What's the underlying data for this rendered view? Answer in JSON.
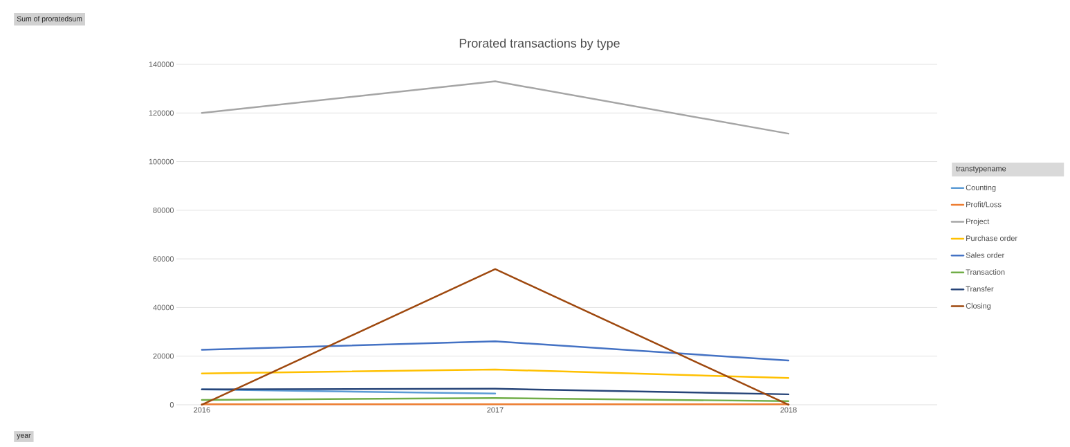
{
  "chart_data": {
    "type": "line",
    "title": "Prorated transactions by type",
    "categories": [
      "2016",
      "2017",
      "2018"
    ],
    "series": [
      {
        "name": "Counting",
        "color": "#5b9bd5",
        "values": [
          6300,
          4600,
          null
        ]
      },
      {
        "name": "Profit/Loss",
        "color": "#ed7d31",
        "values": [
          200,
          200,
          200
        ]
      },
      {
        "name": "Project",
        "color": "#a5a5a5",
        "values": [
          120000,
          133000,
          111500
        ]
      },
      {
        "name": "Purchase order",
        "color": "#ffc000",
        "values": [
          12900,
          14500,
          11000
        ]
      },
      {
        "name": "Sales order",
        "color": "#4472c4",
        "values": [
          22600,
          26100,
          18200
        ]
      },
      {
        "name": "Transaction",
        "color": "#70ad47",
        "values": [
          2000,
          2800,
          1500
        ]
      },
      {
        "name": "Transfer",
        "color": "#264478",
        "values": [
          6300,
          6600,
          4300
        ]
      },
      {
        "name": "Closing",
        "color": "#9e480e",
        "values": [
          0,
          55800,
          0
        ]
      }
    ],
    "ylim": [
      0,
      140000
    ],
    "yticks": [
      0,
      20000,
      40000,
      60000,
      80000,
      100000,
      120000,
      140000
    ],
    "grid": "y",
    "legend": "right",
    "legend_title": "transtypename",
    "marker": "none",
    "line_style": "solid",
    "annotations": [
      "Sum of proratedsum",
      "year"
    ]
  }
}
